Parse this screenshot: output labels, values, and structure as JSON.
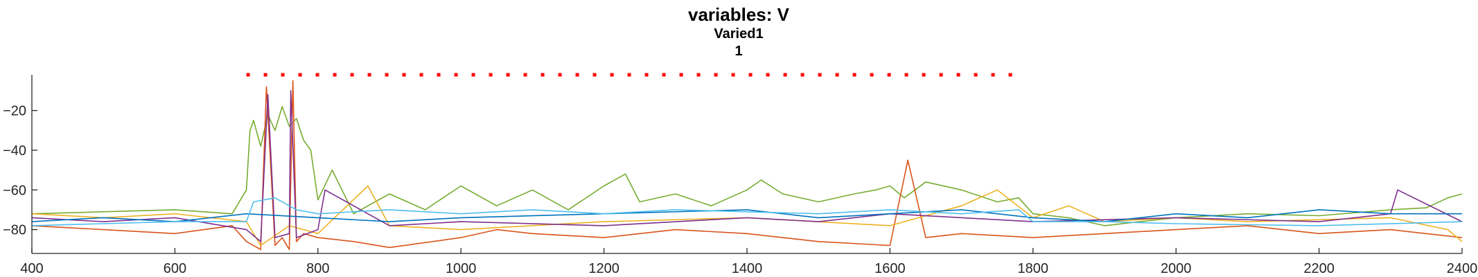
{
  "figure": {
    "title": "variables: V",
    "subtitle": "Varied1",
    "subsubtitle": "1"
  },
  "chart_data": {
    "type": "line",
    "title": "variables: V",
    "subtitle": "Varied1",
    "subsubtitle": "1",
    "xlabel": "",
    "ylabel": "",
    "xlim": [
      400,
      2400
    ],
    "ylim": [
      -92,
      -2
    ],
    "xticks": [
      400,
      600,
      800,
      1000,
      1200,
      1400,
      1600,
      1800,
      2000,
      2200,
      2400
    ],
    "yticks": [
      -20,
      -40,
      -60,
      -80
    ],
    "grid": false,
    "legend": "none",
    "stimulus_marker": {
      "color": "#ff0000",
      "style": "dotted",
      "y": -2,
      "x_start": 700,
      "x_end": 1780
    },
    "series": [
      {
        "color": "#77ac30",
        "x": [
          400,
          500,
          600,
          680,
          700,
          705,
          710,
          720,
          730,
          740,
          750,
          760,
          770,
          780,
          790,
          800,
          820,
          850,
          900,
          950,
          1000,
          1050,
          1100,
          1150,
          1200,
          1230,
          1250,
          1300,
          1350,
          1400,
          1420,
          1450,
          1500,
          1550,
          1580,
          1600,
          1620,
          1650,
          1700,
          1750,
          1780,
          1800,
          1850,
          1900,
          1950,
          2000,
          2100,
          2200,
          2300,
          2350,
          2380,
          2400
        ],
        "y": [
          -72,
          -71,
          -70,
          -72,
          -60,
          -30,
          -25,
          -38,
          -22,
          -30,
          -18,
          -28,
          -24,
          -35,
          -40,
          -65,
          -50,
          -72,
          -62,
          -70,
          -58,
          -68,
          -60,
          -70,
          -58,
          -52,
          -66,
          -62,
          -68,
          -60,
          -55,
          -62,
          -66,
          -62,
          -60,
          -58,
          -64,
          -56,
          -60,
          -66,
          -64,
          -72,
          -74,
          -78,
          -76,
          -74,
          -72,
          -73,
          -70,
          -69,
          -64,
          -62
        ]
      },
      {
        "color": "#d95319",
        "x": [
          400,
          500,
          600,
          680,
          700,
          720,
          728,
          740,
          750,
          760,
          765,
          770,
          780,
          800,
          850,
          900,
          1000,
          1050,
          1100,
          1200,
          1300,
          1400,
          1500,
          1600,
          1625,
          1650,
          1700,
          1800,
          1900,
          2000,
          2100,
          2200,
          2300,
          2400
        ],
        "y": [
          -78,
          -80,
          -82,
          -78,
          -86,
          -90,
          -8,
          -88,
          -84,
          -90,
          -5,
          -86,
          -82,
          -84,
          -86,
          -89,
          -84,
          -80,
          -82,
          -84,
          -80,
          -82,
          -86,
          -88,
          -45,
          -84,
          -82,
          -84,
          -82,
          -80,
          -78,
          -82,
          -80,
          -84
        ]
      },
      {
        "color": "#edb120",
        "x": [
          400,
          500,
          600,
          700,
          720,
          760,
          800,
          870,
          900,
          1000,
          1200,
          1400,
          1600,
          1700,
          1750,
          1800,
          1850,
          1900,
          2000,
          2100,
          2300,
          2380,
          2400
        ],
        "y": [
          -72,
          -74,
          -72,
          -76,
          -88,
          -78,
          -82,
          -58,
          -78,
          -80,
          -76,
          -74,
          -78,
          -68,
          -60,
          -74,
          -68,
          -76,
          -74,
          -76,
          -74,
          -80,
          -86
        ]
      },
      {
        "color": "#7e2f8e",
        "x": [
          400,
          500,
          600,
          700,
          720,
          730,
          740,
          760,
          762,
          770,
          800,
          810,
          900,
          1000,
          1200,
          1400,
          1500,
          1600,
          1800,
          2000,
          2200,
          2300,
          2310,
          2400
        ],
        "y": [
          -74,
          -76,
          -74,
          -80,
          -86,
          -12,
          -84,
          -82,
          -10,
          -84,
          -80,
          -60,
          -78,
          -76,
          -78,
          -74,
          -76,
          -72,
          -76,
          -74,
          -76,
          -72,
          -60,
          -76
        ]
      },
      {
        "color": "#0072bd",
        "x": [
          400,
          500,
          600,
          700,
          800,
          900,
          1000,
          1200,
          1400,
          1500,
          1600,
          1700,
          1800,
          1900,
          2000,
          2100,
          2200,
          2300,
          2400
        ],
        "y": [
          -76,
          -74,
          -76,
          -72,
          -74,
          -76,
          -74,
          -72,
          -70,
          -74,
          -72,
          -70,
          -74,
          -76,
          -72,
          -74,
          -70,
          -72,
          -72
        ]
      },
      {
        "color": "#4dbeee",
        "x": [
          400,
          500,
          600,
          700,
          710,
          740,
          770,
          800,
          900,
          1000,
          1100,
          1200,
          1300,
          1400,
          1500,
          1600,
          1700,
          1780,
          1800,
          1900,
          2000,
          2200,
          2400
        ],
        "y": [
          -78,
          -77,
          -76,
          -76,
          -66,
          -64,
          -70,
          -72,
          -70,
          -72,
          -70,
          -72,
          -70,
          -71,
          -72,
          -70,
          -72,
          -70,
          -76,
          -76,
          -77,
          -78,
          -76
        ]
      }
    ]
  }
}
